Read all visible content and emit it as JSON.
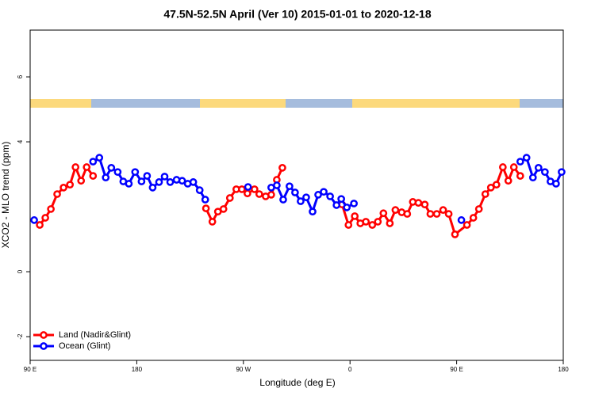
{
  "chart_data": {
    "type": "line",
    "title": "47.5N-52.5N April (Ver 10)   2015-01-01 to 2020-12-18",
    "xlabel": "Longitude (deg E)",
    "ylabel": "XCO2 - MLO trend (ppm)",
    "xlim": [
      90,
      540
    ],
    "xticks": [
      {
        "value": 90,
        "label": "90 E"
      },
      180,
      {
        "value": 270,
        "label": "90 W"
      },
      {
        "value": 360,
        "label": "0"
      },
      {
        "value": 450,
        "label": "90 E"
      },
      {
        "value": 540,
        "label": "180"
      }
    ],
    "ylim": [
      -2.73,
      7.44
    ],
    "yticks": [
      -2,
      0,
      4,
      6
    ],
    "legend": "bottom-left",
    "series": [
      {
        "name": "Land (Nadir&Glint)",
        "color": "#ff0000",
        "x": [
          98.1,
          102.8,
          107.5,
          112.8,
          118.2,
          123.6,
          128.3,
          133.0,
          137.7,
          143.1,
          190,
          238.4,
          243.8,
          248.5,
          253.2,
          258.6,
          264.0,
          268.7,
          273.4,
          279.4,
          283.4,
          288.8,
          293.5,
          298.2,
          302.9,
          330,
          353.3,
          358.7,
          364.0,
          368.7,
          373.4,
          378.8,
          383.5,
          388.2,
          393.6,
          398.3,
          403.6,
          408.3,
          413.0,
          417.7,
          423.1,
          427.8,
          433.2,
          438.6,
          443.3,
          448.6,
          458.7,
          464.1,
          468.8,
          474.2,
          478.9,
          483.6,
          489.0,
          493.6,
          498.3,
          503.7
        ],
        "values": [
          1.44,
          1.66,
          1.93,
          2.39,
          2.59,
          2.68,
          3.22,
          2.8,
          3.22,
          2.95,
          null,
          1.95,
          1.54,
          1.85,
          1.93,
          2.27,
          2.54,
          2.54,
          2.41,
          2.54,
          2.39,
          2.32,
          2.37,
          2.83,
          3.2,
          null,
          2.07,
          1.44,
          1.71,
          1.49,
          1.54,
          1.44,
          1.54,
          1.8,
          1.49,
          1.9,
          1.83,
          1.78,
          2.15,
          2.12,
          2.07,
          1.78,
          1.78,
          1.9,
          1.78,
          1.15,
          1.44,
          1.66,
          1.93,
          2.39,
          2.59,
          2.68,
          3.22,
          2.8,
          3.22,
          2.95
        ]
      },
      {
        "name": "Ocean (Glint)",
        "color": "#0000ff",
        "x": [
          93.4,
          120,
          143.1,
          148.4,
          153.8,
          158.5,
          163.9,
          168.6,
          173.3,
          178.6,
          184.0,
          188.7,
          193.4,
          198.8,
          203.5,
          208.2,
          213.6,
          218.3,
          223.0,
          227.7,
          233.1,
          237.8,
          255,
          273.9,
          285,
          293.5,
          298.2,
          303.6,
          308.9,
          313.6,
          318.3,
          323.0,
          328.4,
          333.1,
          337.8,
          343.2,
          348.6,
          352.6,
          357.3,
          363.3,
          410,
          454.0,
          480,
          503.7,
          509.0,
          514.4,
          519.1,
          524.5,
          529.2,
          533.9,
          538.6
        ],
        "values": [
          1.59,
          null,
          3.39,
          3.51,
          2.9,
          3.2,
          3.07,
          2.78,
          2.71,
          3.07,
          2.78,
          2.95,
          2.59,
          2.76,
          2.93,
          2.76,
          2.83,
          2.8,
          2.71,
          2.76,
          2.51,
          2.22,
          null,
          2.61,
          null,
          2.59,
          2.66,
          2.22,
          2.63,
          2.44,
          2.17,
          2.29,
          1.85,
          2.37,
          2.46,
          2.32,
          2.05,
          2.24,
          1.98,
          2.1,
          null,
          1.59,
          null,
          3.39,
          3.51,
          2.9,
          3.2,
          3.07,
          2.78,
          2.71,
          3.07
        ]
      }
    ]
  }
}
